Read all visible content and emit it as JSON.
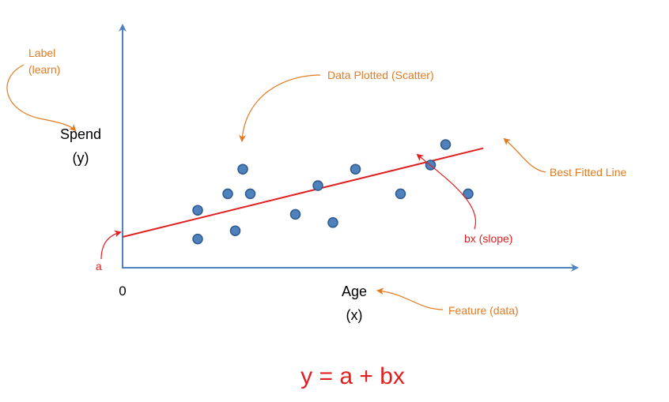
{
  "labels": {
    "label_line1": "Label",
    "label_line2": "(learn)",
    "y_line1": "Spend",
    "y_line2": "(y)",
    "x_line1": "Age",
    "x_line2": "(x)",
    "origin": "0",
    "intercept": "a",
    "data_plotted": "Data Plotted (Scatter)",
    "best_fit": "Best Fitted Line",
    "slope": "bx (slope)",
    "feature": "Feature (data)",
    "equation": "y = a + bx"
  },
  "colors": {
    "axis": "#4f81bd",
    "point_fill": "#4f81bd",
    "point_stroke": "#2c5a8c",
    "fit_line": "#e02020",
    "annotation_orange": "#e07b22",
    "annotation_red": "#e02020",
    "text": "#000000"
  },
  "chart_data": {
    "type": "scatter",
    "points": [
      {
        "x": 1.0,
        "y": 1.4
      },
      {
        "x": 1.4,
        "y": 1.8
      },
      {
        "x": 1.5,
        "y": 0.9
      },
      {
        "x": 1.0,
        "y": 0.7
      },
      {
        "x": 1.6,
        "y": 2.4
      },
      {
        "x": 1.7,
        "y": 1.8
      },
      {
        "x": 2.3,
        "y": 1.3
      },
      {
        "x": 2.6,
        "y": 2.0
      },
      {
        "x": 2.8,
        "y": 1.1
      },
      {
        "x": 3.1,
        "y": 2.4
      },
      {
        "x": 3.7,
        "y": 1.8
      },
      {
        "x": 4.1,
        "y": 2.5
      },
      {
        "x": 4.3,
        "y": 3.0
      },
      {
        "x": 4.6,
        "y": 1.8
      }
    ],
    "fit_line": {
      "intercept": 0.75,
      "slope": 0.45,
      "x_start": 0.0,
      "x_end": 4.8
    },
    "xlim": [
      0,
      5.8
    ],
    "ylim": [
      0,
      4.5
    ]
  }
}
